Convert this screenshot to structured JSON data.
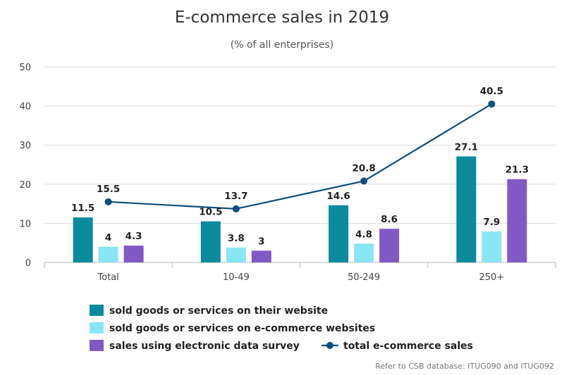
{
  "chart_data": {
    "type": "bar",
    "title": "E-commerce sales in 2019",
    "subtitle": "(% of all enterprises)",
    "categories": [
      "Total",
      "10-49",
      "50-249",
      "250+"
    ],
    "ylim": [
      0,
      50
    ],
    "yticks": [
      0,
      10,
      20,
      30,
      40,
      50
    ],
    "grid": true,
    "legend_position": "bottom",
    "series": [
      {
        "name": "sold goods or services on their website",
        "kind": "bar",
        "color": "#0a8a9c",
        "values": [
          11.5,
          10.5,
          14.6,
          27.1
        ]
      },
      {
        "name": "sold goods or services on e-commerce websites",
        "kind": "bar",
        "color": "#8ae6f4",
        "values": [
          4,
          3.8,
          4.8,
          7.9
        ]
      },
      {
        "name": "sales using electronic data survey",
        "kind": "bar",
        "color": "#8159c4",
        "values": [
          4.3,
          3,
          8.6,
          21.3
        ]
      },
      {
        "name": "total e-commerce sales",
        "kind": "line",
        "color": "#0d4e7e",
        "values": [
          15.5,
          13.7,
          20.8,
          40.5
        ]
      }
    ],
    "credit": "Refer to CSB database: ITUG090 and ITUG092"
  }
}
